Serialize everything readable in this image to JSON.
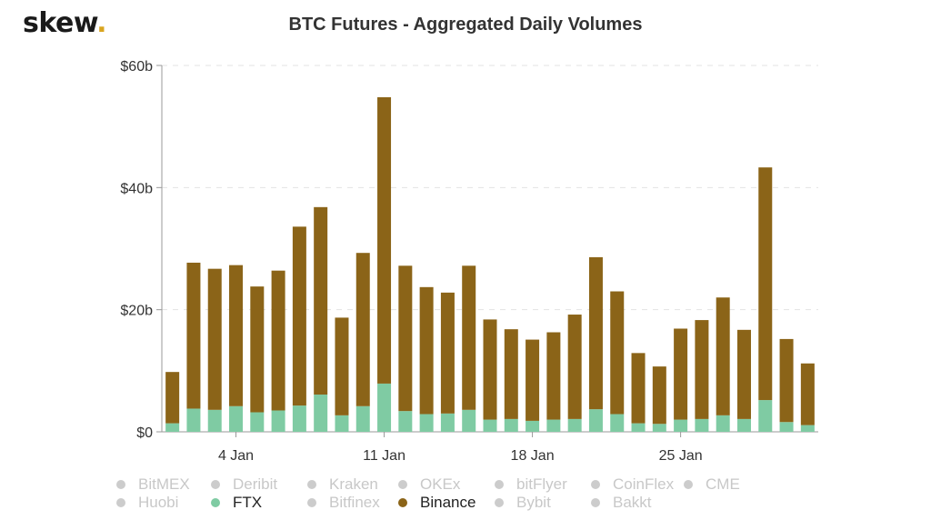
{
  "logo": {
    "text": "skew",
    "dot": "."
  },
  "chart_data": {
    "type": "bar",
    "stacked": true,
    "title": "BTC Futures - Aggregated Daily Volumes",
    "xlabel": "",
    "ylabel": "",
    "ylim": [
      0,
      60
    ],
    "yticks": [
      "$0",
      "$20b",
      "$40b",
      "$60b"
    ],
    "ytick_values": [
      0,
      20,
      40,
      60
    ],
    "x_tick_labels": [
      {
        "label": "4 Jan",
        "date": "2021-01-04"
      },
      {
        "label": "11 Jan",
        "date": "2021-01-11"
      },
      {
        "label": "18 Jan",
        "date": "2021-01-18"
      },
      {
        "label": "25 Jan",
        "date": "2021-01-25"
      }
    ],
    "categories": [
      "2021-01-01",
      "2021-01-02",
      "2021-01-03",
      "2021-01-04",
      "2021-01-05",
      "2021-01-06",
      "2021-01-07",
      "2021-01-08",
      "2021-01-09",
      "2021-01-10",
      "2021-01-11",
      "2021-01-12",
      "2021-01-13",
      "2021-01-14",
      "2021-01-15",
      "2021-01-16",
      "2021-01-17",
      "2021-01-18",
      "2021-01-19",
      "2021-01-20",
      "2021-01-21",
      "2021-01-22",
      "2021-01-23",
      "2021-01-24",
      "2021-01-25",
      "2021-01-26",
      "2021-01-27",
      "2021-01-28",
      "2021-01-29",
      "2021-01-30",
      "2021-01-31"
    ],
    "grid": true,
    "series": [
      {
        "name": "FTX",
        "color": "#7fcba3",
        "values": [
          1.4,
          3.8,
          3.6,
          4.2,
          3.2,
          3.5,
          4.3,
          6.1,
          2.7,
          4.2,
          7.9,
          3.4,
          2.9,
          3.0,
          3.6,
          2.0,
          2.1,
          1.8,
          2.0,
          2.1,
          3.7,
          2.9,
          1.4,
          1.3,
          2.0,
          2.1,
          2.7,
          2.1,
          5.2,
          1.6,
          1.1
        ]
      },
      {
        "name": "Binance",
        "color": "#8b6418",
        "values": [
          8.4,
          23.9,
          23.1,
          23.1,
          20.6,
          22.9,
          29.3,
          30.7,
          16.0,
          25.1,
          46.9,
          23.8,
          20.8,
          19.8,
          23.6,
          16.4,
          14.7,
          13.3,
          14.3,
          17.1,
          24.9,
          20.1,
          11.5,
          9.4,
          14.9,
          16.2,
          19.3,
          14.6,
          38.1,
          13.6,
          10.1
        ]
      }
    ],
    "legend": [
      {
        "label": "BitMEX",
        "active": false
      },
      {
        "label": "Deribit",
        "active": false
      },
      {
        "label": "Kraken",
        "active": false
      },
      {
        "label": "OKEx",
        "active": false
      },
      {
        "label": "bitFlyer",
        "active": false
      },
      {
        "label": "CoinFlex",
        "active": false
      },
      {
        "label": "CME",
        "active": false
      },
      {
        "label": "Huobi",
        "active": false
      },
      {
        "label": "FTX",
        "active": true,
        "color": "#7fcba3"
      },
      {
        "label": "Bitfinex",
        "active": false
      },
      {
        "label": "Binance",
        "active": true,
        "color": "#8b6418"
      },
      {
        "label": "Bybit",
        "active": false
      },
      {
        "label": "Bakkt",
        "active": false
      }
    ],
    "legend_position": "bottom"
  }
}
